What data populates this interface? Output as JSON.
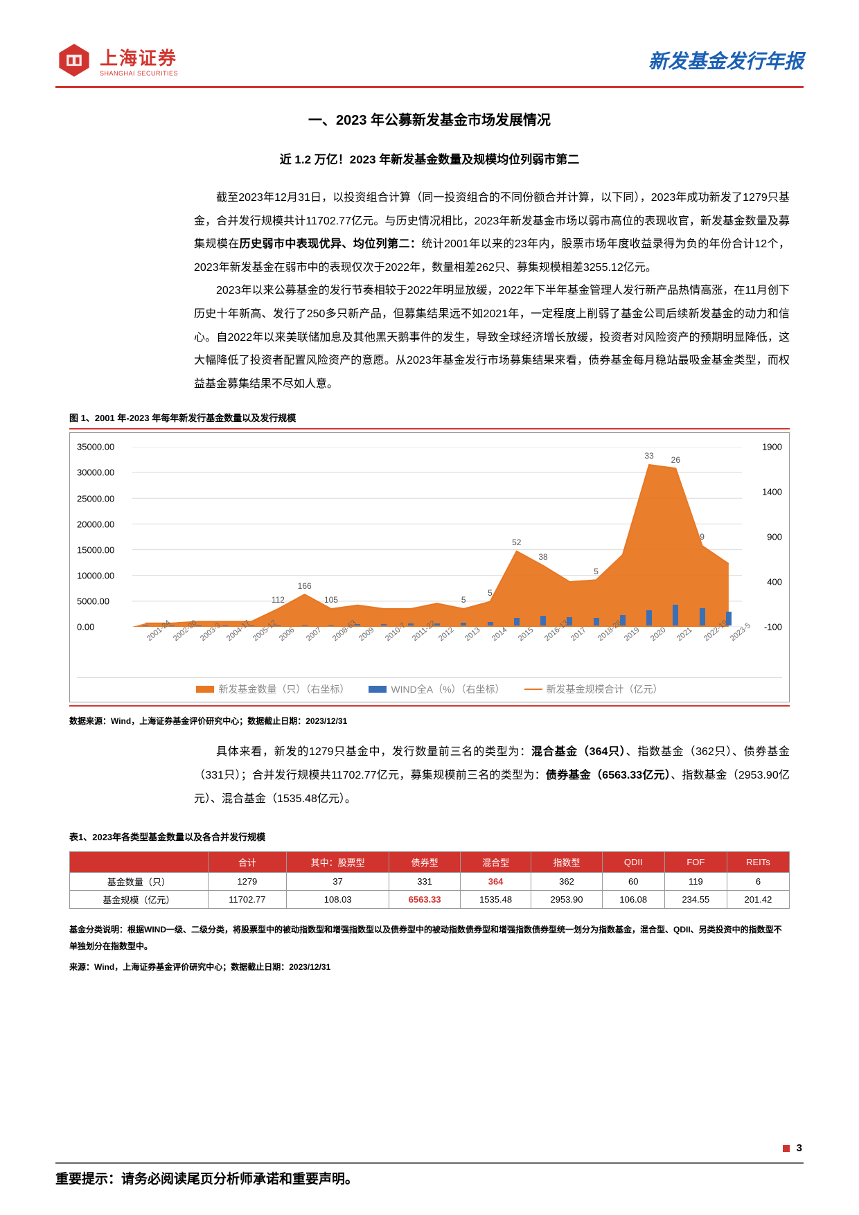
{
  "header": {
    "logo_cn": "上海证券",
    "logo_en": "SHANGHAI SECURITIES",
    "title": "新发基金发行年报"
  },
  "section_title": "一、2023 年公募新发基金市场发展情况",
  "subtitle": "近 1.2 万亿！2023 年新发基金数量及规模均位列弱市第二",
  "para1": "截至2023年12月31日，以投资组合计算（同一投资组合的不同份额合并计算，以下同），2023年成功新发了1279只基金，合并发行规模共计11702.77亿元。与历史情况相比，2023年新发基金市场以弱市高位的表现收官，新发基金数量及募集规模在",
  "para1_bold": "历史弱市中表现优异、均位列第二：",
  "para1_tail": "统计2001年以来的23年内，股票市场年度收益录得为负的年份合计12个，2023年新发基金在弱市中的表现仅次于2022年，数量相差262只、募集规模相差3255.12亿元。",
  "para2": "2023年以来公募基金的发行节奏相较于2022年明显放缓，2022年下半年基金管理人发行新产品热情高涨，在11月创下历史十年新高、发行了250多只新产品，但募集结果远不如2021年，一定程度上削弱了基金公司后续新发基金的动力和信心。自2022年以来美联储加息及其他黑天鹅事件的发生，导致全球经济增长放缓，投资者对风险资产的预期明显降低，这大幅降低了投资者配置风险资产的意愿。从2023年基金发行市场募集结果来看，债券基金每月稳站最吸金基金类型，而权益基金募集结果不尽如人意。",
  "fig1_title": "图 1、2001 年-2023 年每年新发行基金数量以及发行规模",
  "chart": {
    "y_left_ticks": [
      "35000.00",
      "30000.00",
      "25000.00",
      "20000.00",
      "15000.00",
      "10000.00",
      "5000.00",
      "0.00"
    ],
    "y_right_ticks": [
      "1900",
      "1400",
      "900",
      "400",
      "-100"
    ],
    "x_years": [
      "2001",
      "2002",
      "2003",
      "2004",
      "2005",
      "2006",
      "2007",
      "2008",
      "2009",
      "2010",
      "2011",
      "2012",
      "2013",
      "2014",
      "2015",
      "2016",
      "2017",
      "2018",
      "2019",
      "2020",
      "2021",
      "2022",
      "2023"
    ],
    "x_suffix": [
      "-24",
      "-20",
      "-3",
      "-17",
      "-12",
      "",
      "",
      "-63",
      "",
      "-7",
      "-22",
      "",
      "",
      "",
      "",
      "-13",
      "",
      "-28",
      "",
      "",
      "",
      "-19",
      "-5"
    ],
    "val_labels": {
      "2006": "112",
      "2007": "166",
      "2008": "105",
      "2013": "5",
      "2014": "5",
      "2015": "52",
      "2016": "38",
      "2018": "5",
      "2020": "33",
      "2021": "26",
      "2022": "9"
    },
    "area_path_norm": [
      0.02,
      0.02,
      0.03,
      0.03,
      0.03,
      0.1,
      0.18,
      0.1,
      0.12,
      0.1,
      0.1,
      0.13,
      0.1,
      0.14,
      0.42,
      0.34,
      0.25,
      0.26,
      0.4,
      0.9,
      0.88,
      0.45,
      0.35
    ],
    "bar_heights_norm": [
      0.01,
      0.01,
      0.02,
      0.02,
      0.02,
      0.04,
      0.05,
      0.05,
      0.06,
      0.07,
      0.1,
      0.12,
      0.15,
      0.17,
      0.35,
      0.45,
      0.4,
      0.38,
      0.5,
      0.72,
      0.98,
      0.8,
      0.66
    ],
    "legend": [
      "新发基金数量（只）（右坐标）",
      "WIND全A（%）（右坐标）",
      "新发基金规模合计（亿元）"
    ],
    "colors": {
      "area": "#e87722",
      "bar": "#3a6fb7",
      "line": "#e87722",
      "grid": "#d9d9d9"
    }
  },
  "src1": "数据来源：Wind，上海证券基金评价研究中心；数据截止日期：2023/12/31",
  "para3_a": "具体来看，新发的1279只基金中，发行数量前三名的类型为：",
  "para3_b": "混合基金（364只）",
  "para3_c": "、指数基金（362只）、债券基金（331只）；合并发行规模共11702.77亿元，募集规模前三名的类型为：",
  "para3_d": "债券基金（6563.33亿元）",
  "para3_e": "、指数基金（2953.90亿元）、混合基金（1535.48亿元）。",
  "table1_title": "表1、2023年各类型基金数量以及各合并发行规模",
  "table": {
    "headers": [
      "",
      "合计",
      "其中：股票型",
      "债券型",
      "混合型",
      "指数型",
      "QDII",
      "FOF",
      "REITs"
    ],
    "rows": [
      {
        "label": "基金数量（只）",
        "cells": [
          "1279",
          "37",
          "331",
          "364",
          "362",
          "60",
          "119",
          "6"
        ],
        "hl": [
          3
        ]
      },
      {
        "label": "基金规模（亿元）",
        "cells": [
          "11702.77",
          "108.03",
          "6563.33",
          "1535.48",
          "2953.90",
          "106.08",
          "234.55",
          "201.42"
        ],
        "hl": [
          2
        ]
      }
    ]
  },
  "table_note1": "基金分类说明：根据WIND一级、二级分类，将股票型中的被动指数型和增强指数型以及债券型中的被动指数债券型和增强指数债券型统一划分为指数基金，混合型、QDII、另类投资中的指数型不单独划分在指数型中。",
  "table_note2": "来源：Wind，上海证券基金评价研究中心；数据截止日期：2023/12/31",
  "page_num": "3",
  "footer": "重要提示：请务必阅读尾页分析师承诺和重要声明。"
}
